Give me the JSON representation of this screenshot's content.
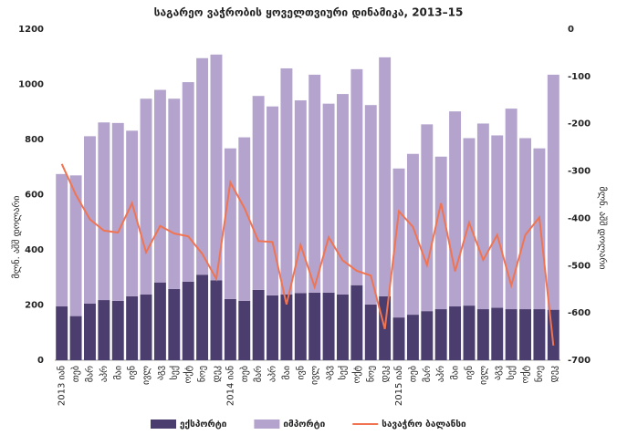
{
  "chart_data": {
    "type": "bar_line",
    "title": "საგარეო ვაჭრობის ყოველთვიური დინამიკა, 2013–15",
    "y_label": "მლნ. აშშ დოლარი",
    "y2_label": "მლნ. აშშ დოლარი",
    "categories": [
      "2013 იან",
      "თებ",
      "მარ",
      "აპრ",
      "მაი",
      "ივნ",
      "ივლ",
      "აგვ",
      "სექ",
      "ოქტ",
      "ნოე",
      "დეკ",
      "2014 იან",
      "თებ",
      "მარ",
      "აპრ",
      "მაი",
      "ივნ",
      "ივლ",
      "აგვ",
      "სექ",
      "ოქტ",
      "ნოე",
      "დეკ",
      "2015 იან",
      "თებ",
      "მარ",
      "აპრ",
      "მაი",
      "ივნ",
      "ივლ",
      "აგვ",
      "სექ",
      "ოქტ",
      "ნოე",
      "დეკ"
    ],
    "series": [
      {
        "name": "ექსპორტი",
        "color": "#4b3d6e",
        "type": "bar",
        "values": [
          195,
          160,
          205,
          218,
          215,
          232,
          238,
          282,
          258,
          285,
          310,
          290,
          222,
          215,
          255,
          235,
          238,
          243,
          245,
          245,
          238,
          272,
          202,
          232,
          155,
          165,
          178,
          185,
          195,
          198,
          185,
          190,
          185,
          185,
          185,
          183
        ]
      },
      {
        "name": "იმპორტი",
        "color": "#b4a4cd",
        "type": "bar",
        "values": [
          480,
          510,
          607,
          644,
          645,
          600,
          710,
          698,
          690,
          723,
          785,
          818,
          546,
          593,
          703,
          685,
          820,
          699,
          790,
          685,
          727,
          783,
          723,
          866,
          540,
          583,
          677,
          553,
          707,
          607,
          673,
          625,
          727,
          620,
          583,
          852
        ]
      },
      {
        "name": "სავაჭრო ბალანსი",
        "color": "#f07451",
        "type": "line",
        "axis": "y2",
        "values": [
          -285,
          -350,
          -402,
          -426,
          -430,
          -368,
          -472,
          -416,
          -432,
          -438,
          -475,
          -528,
          -324,
          -378,
          -448,
          -450,
          -582,
          -456,
          -545,
          -440,
          -489,
          -511,
          -521,
          -634,
          -385,
          -418,
          -499,
          -368,
          -512,
          -409,
          -488,
          -435,
          -542,
          -435,
          -398,
          -669
        ]
      }
    ],
    "ylim": [
      0,
      1200
    ],
    "yticks": [
      0,
      200,
      400,
      600,
      800,
      1000,
      1200
    ],
    "y2lim": [
      -700,
      0
    ],
    "y2ticks": [
      0,
      -100,
      -200,
      -300,
      -400,
      -500,
      -600,
      -700
    ],
    "grid": false,
    "legend": "bottom"
  }
}
